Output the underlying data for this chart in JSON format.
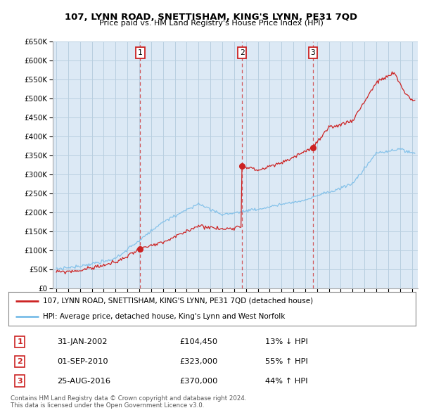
{
  "title": "107, LYNN ROAD, SNETTISHAM, KING'S LYNN, PE31 7QD",
  "subtitle": "Price paid vs. HM Land Registry's House Price Index (HPI)",
  "legend_line1": "107, LYNN ROAD, SNETTISHAM, KING'S LYNN, PE31 7QD (detached house)",
  "legend_line2": "HPI: Average price, detached house, King's Lynn and West Norfolk",
  "transactions": [
    {
      "num": 1,
      "date": "31-JAN-2002",
      "price": 104450,
      "pct": "13%",
      "dir": "↓"
    },
    {
      "num": 2,
      "date": "01-SEP-2010",
      "price": 323000,
      "pct": "55%",
      "dir": "↑"
    },
    {
      "num": 3,
      "date": "25-AUG-2016",
      "price": 370000,
      "pct": "44%",
      "dir": "↑"
    }
  ],
  "transaction_years": [
    2002.08,
    2010.67,
    2016.65
  ],
  "transaction_prices": [
    104450,
    323000,
    370000
  ],
  "footnote1": "Contains HM Land Registry data © Crown copyright and database right 2024.",
  "footnote2": "This data is licensed under the Open Government Licence v3.0.",
  "hpi_color": "#7abde8",
  "price_color": "#cc2222",
  "vline_color": "#cc2222",
  "plot_bg_color": "#dce9f5",
  "fig_bg_color": "#ffffff",
  "grid_color": "#b8cfe0",
  "ylim": [
    0,
    650000
  ],
  "yticks": [
    0,
    50000,
    100000,
    150000,
    200000,
    250000,
    300000,
    350000,
    400000,
    450000,
    500000,
    550000,
    600000,
    650000
  ],
  "xmin": 1994.7,
  "xmax": 2025.5
}
